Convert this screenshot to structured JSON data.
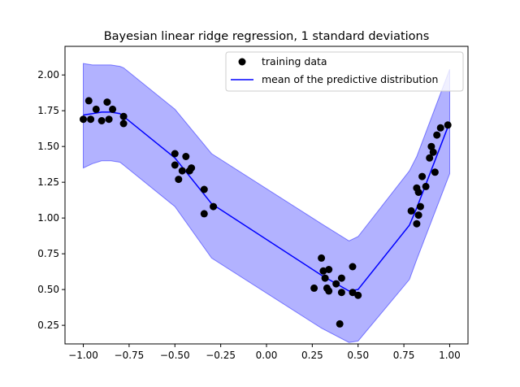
{
  "chart_data": {
    "type": "scatter",
    "title": "Bayesian linear ridge regression, 1 standard deviations",
    "xlabel": "",
    "ylabel": "",
    "xlim": [
      -1.1,
      1.1
    ],
    "ylim": [
      0.12,
      2.2
    ],
    "x_ticks": [
      -1.0,
      -0.75,
      -0.5,
      -0.25,
      0.0,
      0.25,
      0.5,
      0.75,
      1.0
    ],
    "x_tick_labels": [
      "−1.00",
      "−0.75",
      "−0.50",
      "−0.25",
      "0.00",
      "0.25",
      "0.50",
      "0.75",
      "1.00"
    ],
    "y_ticks": [
      0.25,
      0.5,
      0.75,
      1.0,
      1.25,
      1.5,
      1.75,
      2.0
    ],
    "y_tick_labels": [
      "0.25",
      "0.50",
      "0.75",
      "1.00",
      "1.25",
      "1.50",
      "1.75",
      "2.00"
    ],
    "grid": false,
    "legend": {
      "position": "top-right",
      "entries": [
        "training data",
        "mean of the predictive distribution"
      ]
    },
    "colors": {
      "points": "#000000",
      "mean_line": "#0000ff",
      "band_fill": "#0000ff",
      "band_alpha": 0.3
    },
    "series": [
      {
        "name": "training data",
        "kind": "scatter",
        "x": [
          -1.0,
          -0.97,
          -0.96,
          -0.93,
          -0.9,
          -0.87,
          -0.86,
          -0.84,
          -0.78,
          -0.78,
          -0.5,
          -0.5,
          -0.48,
          -0.46,
          -0.44,
          -0.42,
          -0.41,
          -0.34,
          -0.34,
          -0.29,
          0.26,
          0.3,
          0.31,
          0.32,
          0.33,
          0.34,
          0.34,
          0.38,
          0.4,
          0.41,
          0.41,
          0.47,
          0.47,
          0.5,
          0.79,
          0.82,
          0.82,
          0.83,
          0.83,
          0.84,
          0.85,
          0.87,
          0.89,
          0.9,
          0.91,
          0.92,
          0.93,
          0.95,
          0.99
        ],
        "y": [
          1.69,
          1.82,
          1.69,
          1.76,
          1.68,
          1.81,
          1.69,
          1.76,
          1.66,
          1.71,
          1.45,
          1.37,
          1.27,
          1.33,
          1.43,
          1.33,
          1.35,
          1.2,
          1.03,
          1.08,
          0.51,
          0.72,
          0.63,
          0.58,
          0.51,
          0.64,
          0.49,
          0.54,
          0.26,
          0.48,
          0.58,
          0.66,
          0.48,
          0.46,
          1.05,
          1.21,
          0.96,
          1.18,
          1.02,
          1.08,
          1.29,
          1.22,
          1.42,
          1.5,
          1.46,
          1.32,
          1.58,
          1.63,
          1.65
        ]
      },
      {
        "name": "mean of the predictive distribution",
        "kind": "line",
        "x": [
          -1.0,
          -0.95,
          -0.9,
          -0.85,
          -0.8,
          -0.78,
          -0.5,
          -0.3,
          0.3,
          0.45,
          0.5,
          0.78,
          0.82,
          1.0
        ],
        "y": [
          1.72,
          1.73,
          1.74,
          1.74,
          1.73,
          1.71,
          1.42,
          1.1,
          0.6,
          0.49,
          0.5,
          0.95,
          1.07,
          1.67
        ]
      },
      {
        "name": "1 standard deviation band",
        "kind": "band",
        "x": [
          -1.0,
          -0.95,
          -0.9,
          -0.85,
          -0.8,
          -0.78,
          -0.5,
          -0.3,
          0.3,
          0.45,
          0.5,
          0.78,
          0.82,
          1.0
        ],
        "upper": [
          2.08,
          2.07,
          2.07,
          2.07,
          2.06,
          2.05,
          1.76,
          1.45,
          0.96,
          0.84,
          0.87,
          1.33,
          1.43,
          2.04
        ],
        "lower": [
          1.35,
          1.38,
          1.4,
          1.4,
          1.39,
          1.37,
          1.08,
          0.72,
          0.23,
          0.13,
          0.14,
          0.57,
          0.71,
          1.31
        ]
      }
    ]
  }
}
